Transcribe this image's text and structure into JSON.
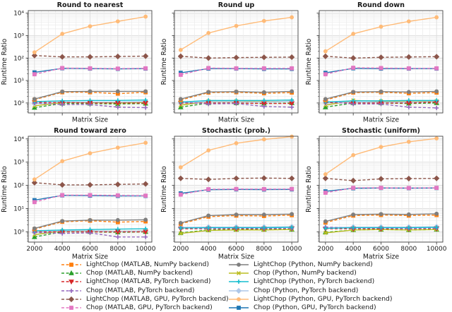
{
  "figure": {
    "ylabel": "Runtime Ratio",
    "xlabel": "Matrix Size",
    "x_tick_labels": [
      "2000",
      "4000",
      "6000",
      "8000",
      "10000"
    ],
    "y_tick_labels": [
      "10⁰",
      "10¹",
      "10²",
      "10³",
      "10⁴"
    ],
    "grid_major_color": "#dcdcdc",
    "grid_minor_color": "#ebebeb",
    "spine_color": "#444444",
    "text_color": "#1a1a1a"
  },
  "series_defs": [
    {
      "id": "lc_m_np",
      "label": "LightChop (MATLAB, NumPy backend)",
      "color": "#ff7f0e",
      "dash": true,
      "marker": "square"
    },
    {
      "id": "chop_m_np",
      "label": "Chop (MATLAB, NumPy backend)",
      "color": "#2ca02c",
      "dash": true,
      "marker": "tri-up"
    },
    {
      "id": "lc_m_pt",
      "label": "LightChop (MATLAB, PyTorch backend)",
      "color": "#d62728",
      "dash": true,
      "marker": "tri-down"
    },
    {
      "id": "chop_m_pt",
      "label": "Chop (MATLAB, PyTorch backend)",
      "color": "#9467bd",
      "dash": true,
      "marker": "plus"
    },
    {
      "id": "lc_m_gpu",
      "label": "LightChop (MATLAB, GPU, PyTorch backend)",
      "color": "#8c564b",
      "dash": true,
      "marker": "diamond"
    },
    {
      "id": "chop_m_gpu",
      "label": "Chop (MATLAB, GPU, PyTorch backend)",
      "color": "#e377c2",
      "dash": true,
      "marker": "square"
    },
    {
      "id": "lc_p_np",
      "label": "LightChop (Python, NumPy backend)",
      "color": "#7f7f7f",
      "dash": false,
      "marker": "circle"
    },
    {
      "id": "chop_p_np",
      "label": "Chop (Python, NumPy backend)",
      "color": "#bcbd22",
      "dash": false,
      "marker": "x"
    },
    {
      "id": "lc_p_pt",
      "label": "LightChop (Python, PyTorch backend)",
      "color": "#17becf",
      "dash": false,
      "marker": "plus"
    },
    {
      "id": "chop_p_pt",
      "label": "Chop (Python, PyTorch backend)",
      "color": "#aec7e8",
      "dash": false,
      "marker": "diamond"
    },
    {
      "id": "lc_p_gpu",
      "label": "LightChop (Python, GPU, PyTorch backend)",
      "color": "#ffbb78",
      "dash": false,
      "marker": "circle"
    },
    {
      "id": "chop_p_gpu",
      "label": "Chop (Python, GPU, PyTorch backend)",
      "color": "#1f77b4",
      "dash": false,
      "marker": "square"
    }
  ],
  "legend": {
    "left_column_ids": [
      "lc_m_np",
      "chop_m_np",
      "lc_m_pt",
      "chop_m_pt",
      "lc_m_gpu",
      "chop_m_gpu"
    ],
    "right_column_ids": [
      "lc_p_np",
      "chop_p_np",
      "lc_p_pt",
      "chop_p_pt",
      "lc_p_gpu",
      "chop_p_gpu"
    ]
  },
  "chart_data": {
    "type": "line",
    "xlabel": "Matrix Size",
    "ylabel": "Runtime Ratio",
    "x": [
      2000,
      4000,
      6000,
      8000,
      10000
    ],
    "xlim": [
      1550,
      10450
    ],
    "ylim": [
      0.36,
      13000
    ],
    "y_scale": "log",
    "legend_position": "bottom",
    "grid": true,
    "z_order": [
      "chop_m_np",
      "chop_p_np",
      "chop_p_pt",
      "lc_m_pt",
      "chop_m_pt",
      "lc_p_pt",
      "lc_m_np",
      "lc_p_np",
      "chop_p_gpu",
      "chop_m_gpu",
      "lc_m_gpu",
      "lc_p_gpu"
    ],
    "subplots": [
      {
        "title": "Round to nearest",
        "series": {
          "lc_m_np": [
            1.4,
            3.0,
            3.0,
            2.6,
            3.0
          ],
          "chop_m_np": [
            0.62,
            0.95,
            0.95,
            0.9,
            0.95
          ],
          "lc_m_pt": [
            1.05,
            1.05,
            1.0,
            1.0,
            1.0
          ],
          "chop_m_pt": [
            1.0,
            0.85,
            0.85,
            0.65,
            0.62
          ],
          "lc_m_gpu": [
            130,
            113,
            113,
            118,
            122
          ],
          "chop_m_gpu": [
            19,
            36,
            35,
            34,
            35
          ],
          "lc_p_np": [
            1.5,
            3.2,
            3.3,
            3.3,
            3.3
          ],
          "chop_p_np": [
            0.75,
            1.05,
            1.05,
            1.0,
            1.05
          ],
          "lc_p_pt": [
            1.15,
            1.25,
            1.3,
            1.3,
            1.35
          ],
          "chop_p_pt": [
            0.95,
            1.1,
            1.1,
            1.1,
            1.15
          ],
          "lc_p_gpu": [
            180,
            1200,
            2600,
            4300,
            7000
          ],
          "chop_p_gpu": [
            23,
            35,
            34,
            33,
            34
          ]
        }
      },
      {
        "title": "Round up",
        "series": {
          "lc_m_np": [
            1.35,
            2.9,
            3.0,
            2.7,
            2.9
          ],
          "chop_m_np": [
            0.65,
            1.0,
            1.0,
            0.95,
            1.0
          ],
          "lc_m_pt": [
            1.0,
            1.0,
            1.0,
            0.95,
            0.95
          ],
          "chop_m_pt": [
            1.1,
            0.9,
            0.95,
            0.7,
            0.65
          ],
          "lc_m_gpu": [
            120,
            100,
            105,
            108,
            110
          ],
          "chop_m_gpu": [
            18,
            36,
            35,
            35,
            35
          ],
          "lc_p_np": [
            1.5,
            3.1,
            3.2,
            3.0,
            3.3
          ],
          "chop_p_np": [
            0.8,
            1.2,
            1.2,
            1.15,
            1.2
          ],
          "lc_p_pt": [
            1.1,
            1.3,
            1.3,
            1.3,
            1.35
          ],
          "chop_p_pt": [
            1.0,
            1.15,
            1.15,
            1.1,
            1.2
          ],
          "lc_p_gpu": [
            230,
            1300,
            2700,
            4500,
            6500
          ],
          "chop_p_gpu": [
            22,
            34,
            34,
            33,
            33
          ]
        }
      },
      {
        "title": "Round down",
        "series": {
          "lc_m_np": [
            1.35,
            2.9,
            3.0,
            2.7,
            2.9
          ],
          "chop_m_np": [
            0.65,
            1.0,
            1.0,
            0.95,
            1.0
          ],
          "lc_m_pt": [
            1.05,
            1.0,
            1.0,
            1.0,
            1.1
          ],
          "chop_m_pt": [
            1.2,
            0.9,
            0.9,
            0.65,
            0.6
          ],
          "lc_m_gpu": [
            120,
            100,
            108,
            112,
            115
          ],
          "chop_m_gpu": [
            19,
            37,
            36,
            35,
            35
          ],
          "lc_p_np": [
            1.5,
            3.1,
            3.2,
            3.1,
            3.3
          ],
          "chop_p_np": [
            0.8,
            1.3,
            1.2,
            1.15,
            1.2
          ],
          "lc_p_pt": [
            1.1,
            1.25,
            1.25,
            1.3,
            1.3
          ],
          "chop_p_pt": [
            1.0,
            1.1,
            1.1,
            1.1,
            1.15
          ],
          "lc_p_gpu": [
            200,
            1200,
            2500,
            4300,
            6500
          ],
          "chop_p_gpu": [
            22,
            35,
            34,
            34,
            34
          ]
        }
      },
      {
        "title": "Round toward zero",
        "series": {
          "lc_m_np": [
            1.3,
            2.7,
            3.0,
            2.6,
            2.8
          ],
          "chop_m_np": [
            0.6,
            1.0,
            1.0,
            0.95,
            1.0
          ],
          "lc_m_pt": [
            1.0,
            1.0,
            1.0,
            1.0,
            1.0
          ],
          "chop_m_pt": [
            0.95,
            0.85,
            0.9,
            0.6,
            0.6
          ],
          "lc_m_gpu": [
            130,
            105,
            105,
            110,
            115
          ],
          "chop_m_gpu": [
            19,
            38,
            38,
            37,
            36
          ],
          "lc_p_np": [
            1.4,
            2.9,
            3.2,
            3.2,
            3.3
          ],
          "chop_p_np": [
            0.75,
            1.1,
            1.1,
            1.05,
            1.1
          ],
          "lc_p_pt": [
            1.1,
            1.2,
            1.25,
            1.3,
            1.35
          ],
          "chop_p_pt": [
            0.95,
            1.1,
            1.1,
            1.05,
            1.1
          ],
          "lc_p_gpu": [
            180,
            1100,
            2400,
            4200,
            6800
          ],
          "chop_p_gpu": [
            23,
            37,
            36,
            35,
            35
          ]
        }
      },
      {
        "title": "Stochastic (prob.)",
        "series": {
          "lc_m_np": [
            2.2,
            4.5,
            5.0,
            4.8,
            5.2
          ],
          "chop_m_np": [
            0.9,
            1.2,
            1.25,
            1.25,
            1.25
          ],
          "lc_m_pt": [
            1.35,
            1.35,
            1.35,
            1.35,
            1.4
          ],
          "chop_m_pt": [
            1.5,
            1.4,
            1.45,
            1.4,
            1.4
          ],
          "lc_m_gpu": [
            200,
            180,
            200,
            205,
            200
          ],
          "chop_m_gpu": [
            40,
            68,
            70,
            69,
            70
          ],
          "lc_p_np": [
            2.4,
            5.0,
            5.5,
            5.5,
            5.8
          ],
          "chop_p_np": [
            0.85,
            1.15,
            1.2,
            1.2,
            1.25
          ],
          "lc_p_pt": [
            1.45,
            1.5,
            1.5,
            1.5,
            1.55
          ],
          "chop_p_pt": [
            1.55,
            1.6,
            1.6,
            1.6,
            1.65
          ],
          "lc_p_gpu": [
            600,
            3200,
            6500,
            9500,
            12500
          ],
          "chop_p_gpu": [
            45,
            65,
            67,
            66,
            67
          ]
        }
      },
      {
        "title": "Stochastic (uniform)",
        "series": {
          "lc_m_np": [
            2.5,
            5.0,
            5.3,
            5.0,
            5.3
          ],
          "chop_m_np": [
            0.95,
            1.2,
            1.25,
            1.2,
            1.25
          ],
          "lc_m_pt": [
            1.35,
            1.35,
            1.35,
            1.35,
            1.4
          ],
          "chop_m_pt": [
            1.6,
            1.45,
            1.45,
            1.4,
            1.45
          ],
          "lc_m_gpu": [
            200,
            160,
            190,
            195,
            200
          ],
          "chop_m_gpu": [
            48,
            78,
            78,
            77,
            78
          ],
          "lc_p_np": [
            2.8,
            5.5,
            5.8,
            5.6,
            6.0
          ],
          "chop_p_np": [
            0.9,
            1.2,
            1.25,
            1.2,
            1.25
          ],
          "lc_p_pt": [
            1.4,
            1.5,
            1.5,
            1.5,
            1.55
          ],
          "chop_p_pt": [
            1.5,
            1.6,
            1.6,
            1.6,
            1.65
          ],
          "lc_p_gpu": [
            300,
            2000,
            4500,
            7500,
            10500
          ],
          "chop_p_gpu": [
            55,
            75,
            77,
            76,
            77
          ]
        }
      }
    ]
  }
}
